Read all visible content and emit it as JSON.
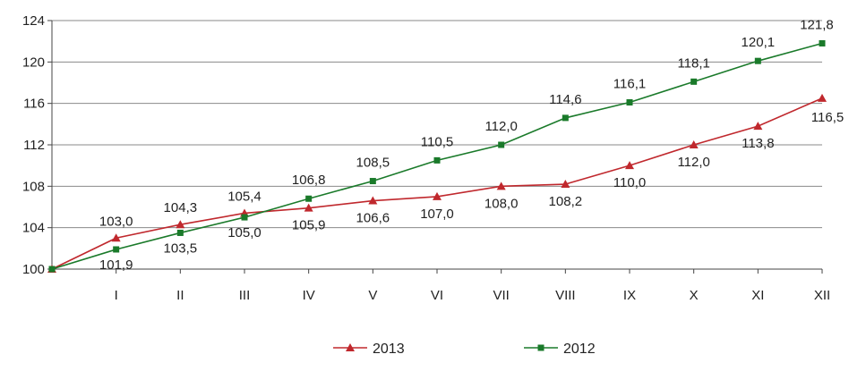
{
  "chart_data": {
    "type": "line",
    "title": "",
    "xlabel": "",
    "ylabel": "",
    "categories": [
      "",
      "I",
      "II",
      "III",
      "IV",
      "V",
      "VI",
      "VII",
      "VIII",
      "IX",
      "X",
      "XI",
      "XII"
    ],
    "ylim": [
      100,
      124
    ],
    "yticks": [
      "100",
      "104",
      "108",
      "112",
      "116",
      "120",
      "124"
    ],
    "grid": "horizontal",
    "legend_position": "bottom",
    "series": [
      {
        "name": "2013",
        "color": "#c0282d",
        "marker": "triangle",
        "values": [
          100,
          103.0,
          104.3,
          105.4,
          105.9,
          106.6,
          107.0,
          108.0,
          108.2,
          110.0,
          112.0,
          113.8,
          116.5
        ],
        "labels": [
          "",
          "103,0",
          "104,3",
          "105,4",
          "105,9",
          "106,6",
          "107,0",
          "108,0",
          "108,2",
          "110,0",
          "112,0",
          "113,8",
          "116,5"
        ]
      },
      {
        "name": "2012",
        "color": "#1a7a2a",
        "marker": "square",
        "values": [
          100,
          101.9,
          103.5,
          105.0,
          106.8,
          108.5,
          110.5,
          112.0,
          114.6,
          116.1,
          118.1,
          120.1,
          121.8
        ],
        "labels": [
          "",
          "101,9",
          "103,5",
          "105,0",
          "106,8",
          "108,5",
          "110,5",
          "112,0",
          "114,6",
          "116,1",
          "118,1",
          "120,1",
          "121,8"
        ]
      }
    ]
  }
}
